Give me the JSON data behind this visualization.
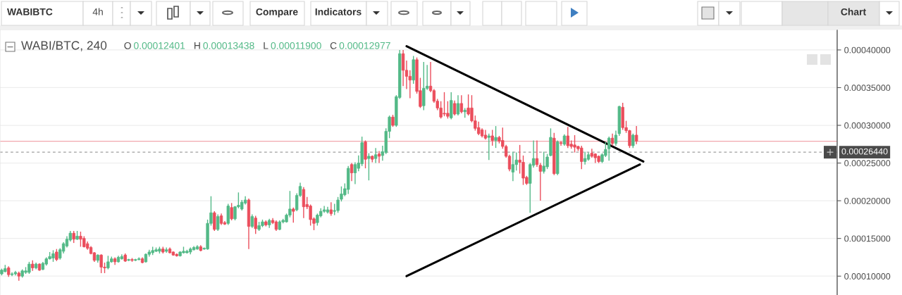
{
  "chart_data": {
    "type": "candlestick",
    "title": "WABI/BTC, 240",
    "annotations": [
      "WABIBTC",
      "4h",
      "Compare",
      "Indicators",
      "Chart",
      "O 0.00012401",
      "H 0.00013438",
      "L 0.00011900",
      "C 0.00012977"
    ],
    "categories": [
      null,
      null,
      null,
      null,
      null,
      null,
      null,
      null,
      null,
      null,
      null,
      null,
      null,
      null,
      null,
      null,
      null,
      null,
      null,
      null,
      null,
      null,
      null,
      null,
      null,
      null,
      null,
      null,
      null,
      null,
      null,
      null,
      null,
      null,
      null,
      null,
      null,
      null,
      null,
      null,
      null,
      null,
      null,
      null,
      null,
      null,
      null,
      null,
      null,
      null,
      null,
      null,
      null,
      null,
      null,
      null,
      null,
      null,
      null,
      null,
      null,
      null,
      null,
      null,
      null,
      null,
      null,
      null,
      null,
      null,
      null,
      null,
      null,
      null,
      null,
      null,
      null,
      null,
      null,
      null,
      null,
      null,
      null,
      null,
      null,
      null,
      null,
      null,
      null,
      null,
      null,
      null,
      null,
      null,
      null,
      null,
      null,
      null,
      null,
      null,
      null,
      null,
      null,
      null,
      null,
      null,
      null,
      null,
      null,
      null,
      null,
      null,
      null,
      null,
      null,
      null,
      null,
      null,
      null,
      null,
      null,
      null,
      null,
      null,
      null,
      null,
      null,
      null,
      null,
      null,
      null,
      null,
      null,
      null,
      null,
      null,
      null,
      null,
      null,
      null,
      null,
      null,
      null,
      null,
      null,
      null,
      null,
      null,
      null,
      null,
      null,
      null,
      null,
      null,
      null,
      null,
      null,
      null,
      null,
      null,
      null,
      null,
      null,
      null,
      null,
      null,
      null,
      null,
      null,
      null,
      null,
      null,
      null,
      null,
      null,
      null,
      null,
      null,
      null,
      null,
      null,
      null,
      null,
      null,
      null,
      null,
      null,
      null,
      null,
      null,
      null,
      null,
      null,
      null,
      null,
      null,
      null,
      null,
      null,
      null,
      null,
      null,
      null,
      null,
      null,
      null,
      null,
      null,
      null,
      null,
      null,
      null,
      null,
      null,
      null,
      null,
      null,
      null,
      null,
      null,
      null,
      null,
      null,
      null,
      null,
      null,
      null,
      null,
      null,
      null,
      null,
      null,
      null,
      null,
      null,
      null,
      null,
      null,
      null,
      null,
      null,
      null,
      null,
      null
    ],
    "ohlc": [
      [
        0.000103,
        0.00011,
        0.000101,
        0.000108
      ],
      [
        0.000106,
        0.000115,
        0.000105,
        0.00011
      ],
      [
        0.000111,
        0.000113,
        9.9e-05,
        0.000102
      ],
      [
        0.000102,
        0.000105,
        0.0001,
        0.000103
      ],
      [
        0.000103,
        0.000107,
        0.000101,
        0.000105
      ],
      [
        0.000104,
        0.000106,
        9.4e-05,
        0.0001
      ],
      [
        0.0001,
        0.000109,
        9.8e-05,
        0.000107
      ],
      [
        0.000105,
        0.000112,
        0.000103,
        0.000107
      ],
      [
        0.000105,
        0.000119,
        0.000103,
        0.000116
      ],
      [
        0.000116,
        0.000121,
        0.000107,
        0.000111
      ],
      [
        0.000111,
        0.000118,
        0.000109,
        0.000116
      ],
      [
        0.000116,
        0.000117,
        0.000107,
        0.000108
      ],
      [
        0.000109,
        0.000119,
        0.000108,
        0.000117
      ],
      [
        0.000116,
        0.000125,
        0.000114,
        0.000123
      ],
      [
        0.000123,
        0.000132,
        0.000122,
        0.000126
      ],
      [
        0.00012401,
        0.00013438,
        0.000119,
        0.00012977
      ],
      [
        0.000132,
        0.000136,
        0.00012,
        0.000122
      ],
      [
        0.000124,
        0.000137,
        0.000122,
        0.000135
      ],
      [
        0.000133,
        0.000145,
        0.00013,
        0.000143
      ],
      [
        0.00014,
        0.000153,
        0.000138,
        0.000149
      ],
      [
        0.000148,
        0.00016,
        0.000146,
        0.000157
      ],
      [
        0.000157,
        0.00016,
        0.000144,
        0.000149
      ],
      [
        0.000149,
        0.00016,
        0.000148,
        0.000153
      ],
      [
        0.000153,
        0.000159,
        0.000139,
        0.000149
      ],
      [
        0.00015,
        0.000153,
        0.000138,
        0.000139
      ],
      [
        0.000143,
        0.000146,
        0.000135,
        0.000137
      ],
      [
        0.000138,
        0.00014,
        0.000129,
        0.00013
      ],
      [
        0.000131,
        0.000132,
        0.000119,
        0.000121
      ],
      [
        0.000121,
        0.000129,
        0.000118,
        0.000128
      ],
      [
        0.000128,
        0.000129,
        0.000104,
        0.000112
      ],
      [
        0.000112,
        0.000118,
        0.000104,
        0.000111
      ],
      [
        0.000111,
        0.000127,
        0.000109,
        0.000119
      ],
      [
        0.000119,
        0.000126,
        0.000118,
        0.000123
      ],
      [
        0.000123,
        0.000125,
        0.000115,
        0.000119
      ],
      [
        0.000119,
        0.000127,
        0.000118,
        0.000125
      ],
      [
        0.000123,
        0.000129,
        0.000122,
        0.000126
      ],
      [
        0.000128,
        0.00013,
        0.000119,
        0.00012
      ],
      [
        0.000121,
        0.000123,
        0.00012,
        0.000122
      ],
      [
        0.000122,
        0.000124,
        0.000119,
        0.000121
      ],
      [
        0.000121,
        0.000123,
        0.00012,
        0.000122
      ],
      [
        0.000122,
        0.000125,
        0.000121,
        0.000123
      ],
      [
        0.000123,
        0.000125,
        0.000117,
        0.000118
      ],
      [
        0.000119,
        0.00013,
        0.000118,
        0.000129
      ],
      [
        0.000129,
        0.000135,
        0.000126,
        0.000132
      ],
      [
        0.000131,
        0.000139,
        0.000128,
        0.000134
      ],
      [
        0.000133,
        0.000138,
        0.000132,
        0.000135
      ],
      [
        0.000133,
        0.000139,
        0.00013,
        0.000136
      ],
      [
        0.000136,
        0.000139,
        0.00013,
        0.000132
      ],
      [
        0.000133,
        0.000138,
        0.000131,
        0.000135
      ],
      [
        0.000136,
        0.000138,
        0.00013,
        0.000131
      ],
      [
        0.000132,
        0.000133,
        0.000127,
        0.000128
      ],
      [
        0.000129,
        0.00013,
        0.000126,
        0.000127
      ],
      [
        0.000127,
        0.000133,
        0.000126,
        0.000132
      ],
      [
        0.000131,
        0.000139,
        0.00013,
        0.000133
      ],
      [
        0.000131,
        0.000135,
        0.00013,
        0.000133
      ],
      [
        0.000132,
        0.000138,
        0.000129,
        0.000136
      ],
      [
        0.000135,
        0.00014,
        0.000134,
        0.000138
      ],
      [
        0.000136,
        0.000141,
        0.000135,
        0.000139
      ],
      [
        0.000139,
        0.000141,
        0.000133,
        0.000134
      ],
      [
        0.000136,
        0.000138,
        0.000135,
        0.000137
      ],
      [
        0.000136,
        0.000175,
        0.000135,
        0.00017
      ],
      [
        0.00017,
        0.000206,
        0.000167,
        0.000184
      ],
      [
        0.000184,
        0.000186,
        0.00016,
        0.000162
      ],
      [
        0.000162,
        0.000182,
        0.00016,
        0.000179
      ],
      [
        0.00018,
        0.000183,
        0.000168,
        0.00017
      ],
      [
        0.000171,
        0.000173,
        0.000168,
        0.000169
      ],
      [
        0.00017,
        0.000196,
        0.000168,
        0.000193
      ],
      [
        0.000191,
        0.000197,
        0.000174,
        0.000176
      ],
      [
        0.000176,
        0.000193,
        0.000174,
        0.000192
      ],
      [
        0.000192,
        0.000211,
        0.00019,
        0.000194
      ],
      [
        0.000189,
        0.000201,
        0.000187,
        0.000198
      ],
      [
        0.000197,
        0.000206,
        0.000195,
        0.000201
      ],
      [
        0.000201,
        0.000203,
        0.000136,
        0.000166
      ],
      [
        0.000166,
        0.000182,
        0.000164,
        0.000179
      ],
      [
        0.000177,
        0.00018,
        0.000156,
        0.000163
      ],
      [
        0.000162,
        0.000172,
        0.00016,
        0.000167
      ],
      [
        0.000167,
        0.000175,
        0.000165,
        0.000172
      ],
      [
        0.000172,
        0.000174,
        0.000166,
        0.000168
      ],
      [
        0.000168,
        0.000176,
        0.000164,
        0.000174
      ],
      [
        0.000174,
        0.000177,
        0.000169,
        0.000171
      ],
      [
        0.000172,
        0.000174,
        0.00016,
        0.000162
      ],
      [
        0.000162,
        0.000174,
        0.000161,
        0.000172
      ],
      [
        0.000172,
        0.000176,
        0.00017,
        0.000174
      ],
      [
        0.000172,
        0.000183,
        0.000171,
        0.000181
      ],
      [
        0.000181,
        0.000213,
        0.000178,
        0.000189
      ],
      [
        0.000189,
        0.000191,
        0.000171,
        0.000186
      ],
      [
        0.000188,
        0.00021,
        0.000186,
        0.000207
      ],
      [
        0.000207,
        0.000224,
        0.000205,
        0.000219
      ],
      [
        0.000215,
        0.000218,
        0.000177,
        0.000192
      ],
      [
        0.000195,
        0.000205,
        0.000189,
        0.000192
      ],
      [
        0.000193,
        0.000195,
        0.000167,
        0.000175
      ],
      [
        0.000176,
        0.000178,
        0.000161,
        0.00017
      ],
      [
        0.000171,
        0.000183,
        0.000167,
        0.000181
      ],
      [
        0.00018,
        0.00019,
        0.000178,
        0.000186
      ],
      [
        0.000186,
        0.000193,
        0.000184,
        0.000188
      ],
      [
        0.000185,
        0.000192,
        0.000183,
        0.000188
      ],
      [
        0.000188,
        0.000198,
        0.00018,
        0.000183
      ],
      [
        0.000186,
        0.000196,
        0.000181,
        0.000187
      ],
      [
        0.000187,
        0.000205,
        0.000184,
        0.000201
      ],
      [
        0.000202,
        0.000219,
        0.000199,
        0.000209
      ],
      [
        0.000208,
        0.000223,
        0.000206,
        0.000216
      ],
      [
        0.000215,
        0.000246,
        0.000209,
        0.000243
      ],
      [
        0.000248,
        0.00025,
        0.000226,
        0.000237
      ],
      [
        0.000237,
        0.000251,
        0.000222,
        0.000248
      ],
      [
        0.000243,
        0.00026,
        0.000239,
        0.00025
      ],
      [
        0.000249,
        0.000285,
        0.000246,
        0.000277
      ],
      [
        0.000278,
        0.00028,
        0.000243,
        0.000255
      ],
      [
        0.000256,
        0.000263,
        0.000227,
        0.000259
      ],
      [
        0.000259,
        0.00026,
        0.000251,
        0.000255
      ],
      [
        0.000256,
        0.00027,
        0.00025,
        0.000261
      ],
      [
        0.000262,
        0.000266,
        0.00025,
        0.000259
      ],
      [
        0.00026,
        0.000273,
        0.000253,
        0.000265
      ],
      [
        0.000264,
        0.000296,
        0.000262,
        0.000292
      ],
      [
        0.000292,
        0.000313,
        0.000283,
        0.000311
      ],
      [
        0.000311,
        0.000314,
        0.000298,
        0.0003
      ],
      [
        0.0003,
        0.00034,
        0.000298,
        0.000338
      ],
      [
        0.000337,
        0.0004,
        0.000335,
        0.000395
      ],
      [
        0.000395,
        0.0004,
        0.000352,
        0.000373
      ],
      [
        0.000373,
        0.000386,
        0.000348,
        0.000365
      ],
      [
        0.000365,
        0.000373,
        0.000336,
        0.00036
      ],
      [
        0.00036,
        0.000392,
        0.000355,
        0.000387
      ],
      [
        0.000387,
        0.00039,
        0.000342,
        0.000345
      ],
      [
        0.000346,
        0.000363,
        0.000323,
        0.000325
      ],
      [
        0.000326,
        0.000384,
        0.00032,
        0.000349
      ],
      [
        0.000349,
        0.00038,
        0.000347,
        0.000352
      ],
      [
        0.000352,
        0.000384,
        0.000344,
        0.000346
      ],
      [
        0.000346,
        0.000348,
        0.00033,
        0.000332
      ],
      [
        0.000332,
        0.000335,
        0.00032,
        0.000323
      ],
      [
        0.000323,
        0.000332,
        0.000309,
        0.000311
      ],
      [
        0.000316,
        0.000344,
        0.000312,
        0.000315
      ],
      [
        0.000316,
        0.000332,
        0.000309,
        0.000312
      ],
      [
        0.00031,
        0.000344,
        0.000308,
        0.000333
      ],
      [
        0.000329,
        0.000333,
        0.000313,
        0.000315
      ],
      [
        0.000315,
        0.00034,
        0.000313,
        0.000329
      ],
      [
        0.000329,
        0.00034,
        0.000316,
        0.000318
      ],
      [
        0.000318,
        0.000323,
        0.00031,
        0.00032
      ],
      [
        0.000323,
        0.000341,
        0.000313,
        0.000315
      ],
      [
        0.000323,
        0.00034,
        0.000304,
        0.000306
      ],
      [
        0.000306,
        0.000313,
        0.000293,
        0.000296
      ],
      [
        0.000297,
        0.000305,
        0.000287,
        0.000289
      ],
      [
        0.000294,
        0.000296,
        0.000284,
        0.000286
      ],
      [
        0.000287,
        0.000294,
        0.000281,
        0.000283
      ],
      [
        0.000284,
        0.000289,
        0.000254,
        0.000286
      ],
      [
        0.000286,
        0.000294,
        0.000273,
        0.00028
      ],
      [
        0.00028,
        0.000299,
        0.00027,
        0.000284
      ],
      [
        0.000284,
        0.000286,
        0.000276,
        0.000279
      ],
      [
        0.00028,
        0.000297,
        0.000269,
        0.000272
      ],
      [
        0.000272,
        0.000274,
        0.000257,
        0.000259
      ],
      [
        0.000259,
        0.000261,
        0.000239,
        0.000242
      ],
      [
        0.000238,
        0.000265,
        0.000226,
        0.000248
      ],
      [
        0.000248,
        0.000264,
        0.00024,
        0.000254
      ],
      [
        0.000254,
        0.000274,
        0.000236,
        0.000251
      ],
      [
        0.000251,
        0.00026,
        0.000221,
        0.00023
      ],
      [
        0.000231,
        0.000233,
        0.000221,
        0.000223
      ],
      [
        0.000223,
        0.00025,
        0.000184,
        0.000248
      ],
      [
        0.000247,
        0.00028,
        0.000244,
        0.000256
      ],
      [
        0.000256,
        0.00028,
        0.000245,
        0.000248
      ],
      [
        0.000247,
        0.00025,
        0.0002,
        0.000239
      ],
      [
        0.000239,
        0.000265,
        0.000236,
        0.000246
      ],
      [
        0.000245,
        0.000262,
        0.000242,
        0.000258
      ],
      [
        0.00026,
        0.000296,
        0.000259,
        0.000284
      ],
      [
        0.000283,
        0.00029,
        0.000234,
        0.000236
      ],
      [
        0.000236,
        0.00028,
        0.000234,
        0.000278
      ],
      [
        0.000277,
        0.000279,
        0.000273,
        0.000276
      ],
      [
        0.000275,
        0.000288,
        0.000273,
        0.000286
      ],
      [
        0.000286,
        0.000298,
        0.00027,
        0.000273
      ],
      [
        0.000275,
        0.00028,
        0.000269,
        0.000272
      ],
      [
        0.000274,
        0.000287,
        0.000264,
        0.000271
      ],
      [
        0.000272,
        0.000273,
        0.000266,
        0.000269
      ],
      [
        0.00027,
        0.000273,
        0.000242,
        0.000252
      ],
      [
        0.000252,
        0.000265,
        0.000248,
        0.000256
      ],
      [
        0.000255,
        0.000264,
        0.000253,
        0.000261
      ],
      [
        0.000263,
        0.000269,
        0.000257,
        0.000259
      ],
      [
        0.000262,
        0.000263,
        0.00025,
        0.000257
      ],
      [
        0.000259,
        0.00026,
        0.00025,
        0.000252
      ],
      [
        0.000252,
        0.000263,
        0.00025,
        0.000261
      ],
      [
        0.00026,
        0.000278,
        0.000258,
        0.000268
      ],
      [
        0.000269,
        0.000285,
        0.000253,
        0.000283
      ],
      [
        0.000283,
        0.000289,
        0.000273,
        0.000276
      ],
      [
        0.000276,
        0.000293,
        0.000273,
        0.000287
      ],
      [
        0.000289,
        0.000326,
        0.000286,
        0.000325
      ],
      [
        0.000324,
        0.00033,
        0.000294,
        0.000297
      ],
      [
        0.000297,
        0.000306,
        0.00029,
        0.000293
      ],
      [
        0.000293,
        0.000294,
        0.00027,
        0.000273
      ],
      [
        0.000273,
        0.000289,
        0.00027,
        0.000287
      ],
      [
        0.000287,
        0.000299,
        0.000275,
        0.000279
      ],
      null,
      null,
      null,
      null,
      null,
      null,
      null,
      null,
      null,
      null,
      null,
      null,
      null,
      null,
      null,
      null,
      null,
      null,
      null,
      null,
      null,
      null,
      null,
      null,
      null,
      null,
      null,
      null,
      null,
      null,
      null,
      null,
      null,
      null,
      null,
      null,
      null,
      null,
      null,
      null,
      null,
      null,
      null,
      null,
      null,
      null,
      null,
      null,
      null,
      null,
      null,
      null,
      null,
      null,
      null,
      null,
      null,
      null
    ],
    "colors": [
      "#53b987",
      "#53b987",
      "#eb4d5c",
      "#53b987",
      "#53b987",
      "#eb4d5c",
      "#53b987",
      "#53b987",
      "#53b987",
      "#eb4d5c",
      "#53b987",
      "#eb4d5c",
      "#53b987",
      "#53b987",
      "#53b987",
      "#53b987",
      "#eb4d5c",
      "#53b987",
      "#53b987",
      "#53b987",
      "#53b987",
      "#eb4d5c",
      "#53b987",
      "#eb4d5c",
      "#eb4d5c",
      "#eb4d5c",
      "#eb4d5c",
      "#eb4d5c",
      "#53b987",
      "#eb4d5c",
      "#eb4d5c",
      "#53b987",
      "#53b987",
      "#eb4d5c",
      "#53b987",
      "#53b987",
      "#eb4d5c",
      "#53b987",
      "#eb4d5c",
      "#53b987",
      "#53b987",
      "#eb4d5c",
      "#53b987",
      "#53b987",
      "#53b987",
      "#53b987",
      "#53b987",
      "#eb4d5c",
      "#53b987",
      "#eb4d5c",
      "#eb4d5c",
      "#eb4d5c",
      "#53b987",
      "#53b987",
      "#53b987",
      "#53b987",
      "#53b987",
      "#53b987",
      "#eb4d5c",
      "#53b987",
      "#53b987",
      "#53b987",
      "#eb4d5c",
      "#53b987",
      "#eb4d5c",
      "#eb4d5c",
      "#53b987",
      "#eb4d5c",
      "#53b987",
      "#53b987",
      "#53b987",
      "#53b987",
      "#eb4d5c",
      "#53b987",
      "#eb4d5c",
      "#53b987",
      "#53b987",
      "#eb4d5c",
      "#53b987",
      "#eb4d5c",
      "#eb4d5c",
      "#53b987",
      "#53b987",
      "#53b987",
      "#53b987",
      "#eb4d5c",
      "#53b987",
      "#53b987",
      "#eb4d5c",
      "#eb4d5c",
      "#eb4d5c",
      "#eb4d5c",
      "#53b987",
      "#53b987",
      "#53b987",
      "#53b987",
      "#eb4d5c",
      "#53b987",
      "#53b987",
      "#53b987",
      "#53b987",
      "#53b987",
      "#eb4d5c",
      "#53b987",
      "#53b987",
      "#53b987",
      "#eb4d5c",
      "#53b987",
      "#eb4d5c",
      "#53b987",
      "#eb4d5c",
      "#53b987",
      "#53b987",
      "#53b987",
      "#eb4d5c",
      "#53b987",
      "#53b987",
      "#eb4d5c",
      "#eb4d5c",
      "#eb4d5c",
      "#53b987",
      "#eb4d5c",
      "#eb4d5c",
      "#53b987",
      "#53b987",
      "#eb4d5c",
      "#eb4d5c",
      "#eb4d5c",
      "#eb4d5c",
      "#eb4d5c",
      "#eb4d5c",
      "#53b987",
      "#eb4d5c",
      "#53b987",
      "#eb4d5c",
      "#53b987",
      "#eb4d5c",
      "#eb4d5c",
      "#eb4d5c",
      "#eb4d5c",
      "#eb4d5c",
      "#eb4d5c",
      "#53b987",
      "#eb4d5c",
      "#53b987",
      "#eb4d5c",
      "#eb4d5c",
      "#eb4d5c",
      "#eb4d5c",
      "#53b987",
      "#53b987",
      "#eb4d5c",
      "#eb4d5c",
      "#eb4d5c",
      "#53b987",
      "#53b987",
      "#eb4d5c",
      "#eb4d5c",
      "#53b987",
      "#53b987",
      "#53b987",
      "#eb4d5c",
      "#53b987",
      "#eb4d5c",
      "#53b987",
      "#eb4d5c",
      "#eb4d5c",
      "#eb4d5c",
      "#eb4d5c",
      "#eb4d5c",
      "#53b987",
      "#53b987",
      "#eb4d5c",
      "#eb4d5c",
      "#eb4d5c",
      "#53b987",
      "#53b987",
      "#53b987",
      "#eb4d5c",
      "#53b987",
      "#53b987",
      "#eb4d5c",
      "#eb4d5c",
      "#eb4d5c",
      "#53b987",
      "#eb4d5c",
      null,
      null,
      null,
      null,
      null,
      null,
      null,
      null,
      null,
      null,
      null,
      null,
      null,
      null,
      null,
      null,
      null,
      null,
      null,
      null,
      null,
      null,
      null,
      null,
      null,
      null,
      null,
      null,
      null,
      null,
      null,
      null,
      null,
      null,
      null,
      null,
      null,
      null,
      null,
      null,
      null,
      null,
      null,
      null,
      null,
      null,
      null,
      null,
      null,
      null,
      null,
      null,
      null,
      null,
      null,
      null,
      null,
      null
    ],
    "series": [
      {
        "type": "line",
        "color": "#000000",
        "values": [
          null,
          null,
          null,
          null,
          null,
          null,
          null,
          null,
          null,
          null,
          null,
          null,
          null,
          null,
          null,
          null,
          null,
          null,
          null,
          null,
          null,
          null,
          null,
          null,
          null,
          null,
          null,
          null,
          null,
          null,
          null,
          null,
          null,
          null,
          null,
          null,
          null,
          null,
          null,
          null,
          null,
          null,
          null,
          null,
          null,
          null,
          null,
          null,
          null,
          null,
          null,
          null,
          null,
          null,
          null,
          null,
          null,
          null,
          null,
          null,
          null,
          null,
          null,
          null,
          null,
          null,
          null,
          null,
          null,
          null,
          null,
          null,
          null,
          null,
          null,
          null,
          null,
          null,
          null,
          null,
          null,
          null,
          null,
          null,
          null,
          null,
          null,
          null,
          null,
          null,
          null,
          null,
          null,
          null,
          null,
          null,
          null,
          null,
          null,
          null,
          null,
          null,
          null,
          null,
          null,
          null,
          null,
          null,
          null,
          null,
          null,
          null,
          null,
          null,
          null,
          null,
          null,
          null,
          0.000405,
          null,
          null,
          null,
          null,
          null,
          null,
          null,
          null,
          null,
          null,
          null,
          null,
          null,
          null,
          null,
          null,
          null,
          null,
          null,
          null,
          null,
          null,
          null,
          null,
          null,
          null,
          null,
          null,
          null,
          null,
          null,
          null,
          null,
          null,
          null,
          null,
          null,
          null,
          null,
          null,
          null,
          null,
          null,
          null,
          null,
          null,
          null,
          null,
          null,
          null,
          null,
          null,
          null,
          null,
          null,
          null,
          null,
          null,
          null,
          null,
          null,
          null,
          null,
          null,
          null,
          null,
          null,
          null,
          0.000252,
          null,
          null,
          null,
          null,
          null,
          null,
          null,
          null,
          null,
          null,
          null,
          null,
          null,
          null,
          null,
          null,
          null,
          null,
          null,
          null,
          null,
          null,
          null,
          null,
          null,
          null,
          null,
          null,
          null,
          null,
          null,
          null,
          null,
          null,
          null,
          null,
          null,
          null,
          null,
          null,
          null,
          null,
          null,
          null,
          null,
          null,
          null,
          null,
          null,
          null,
          null,
          null,
          null,
          null,
          null,
          null
        ]
      },
      {
        "type": "line",
        "color": "#000000",
        "values": [
          null,
          null,
          null,
          null,
          null,
          null,
          null,
          null,
          null,
          null,
          null,
          null,
          null,
          null,
          null,
          null,
          null,
          null,
          null,
          null,
          null,
          null,
          null,
          null,
          null,
          null,
          null,
          null,
          null,
          null,
          null,
          null,
          null,
          null,
          null,
          null,
          null,
          null,
          null,
          null,
          null,
          null,
          null,
          null,
          null,
          null,
          null,
          null,
          null,
          null,
          null,
          null,
          null,
          null,
          null,
          null,
          null,
          null,
          null,
          null,
          null,
          null,
          null,
          null,
          null,
          null,
          null,
          null,
          null,
          null,
          null,
          null,
          null,
          null,
          null,
          null,
          null,
          null,
          null,
          null,
          null,
          null,
          null,
          null,
          null,
          null,
          null,
          null,
          null,
          null,
          null,
          null,
          null,
          null,
          null,
          null,
          null,
          null,
          null,
          null,
          null,
          null,
          null,
          null,
          null,
          null,
          null,
          null,
          null,
          null,
          null,
          null,
          null,
          null,
          null,
          null,
          null,
          null,
          0.0001,
          null,
          null,
          null,
          null,
          null,
          null,
          null,
          null,
          null,
          null,
          null,
          null,
          null,
          null,
          null,
          null,
          null,
          null,
          null,
          null,
          null,
          null,
          null,
          null,
          null,
          null,
          null,
          null,
          null,
          null,
          null,
          null,
          null,
          null,
          null,
          null,
          null,
          null,
          null,
          null,
          null,
          null,
          null,
          null,
          null,
          null,
          null,
          null,
          null,
          null,
          null,
          null,
          null,
          null,
          null,
          null,
          null,
          null,
          null,
          null,
          null,
          null,
          null,
          null,
          null,
          null,
          null,
          0.000248,
          null,
          null,
          null,
          null,
          null,
          null,
          null,
          null,
          null,
          null,
          null,
          null,
          null,
          null,
          null,
          null,
          null,
          null,
          null,
          null,
          null,
          null,
          null,
          null,
          null,
          null,
          null,
          null,
          null,
          null,
          null,
          null,
          null,
          null,
          null,
          null,
          null,
          null,
          null,
          null,
          null,
          null,
          null,
          null,
          null,
          null,
          null,
          null,
          null,
          null,
          null,
          null,
          null,
          null,
          null,
          null,
          null
        ]
      }
    ],
    "ylim": [
      7.5e-05,
      0.000427
    ],
    "yticks": [
      {
        "value": 0.0001,
        "label": "0.00010000"
      },
      {
        "value": 0.00015,
        "label": "0.00015000"
      },
      {
        "value": 0.0002,
        "label": "0.00020000"
      },
      {
        "value": 0.00025,
        "label": "0.00025000"
      },
      {
        "value": 0.0003,
        "label": "0.00030000"
      },
      {
        "value": 0.00035,
        "label": "0.00035000"
      },
      {
        "value": 0.0004,
        "label": "0.00040000"
      }
    ],
    "tick_labels": "y",
    "grid": "y",
    "ref_lines": [
      {
        "axis": "y",
        "value": 0.000279,
        "color": "#f2a7ae"
      },
      {
        "axis": "y",
        "value": 0.0002644,
        "label": "0.00026440",
        "color": "#9e9e9e",
        "line_style": "dashed"
      }
    ]
  }
}
